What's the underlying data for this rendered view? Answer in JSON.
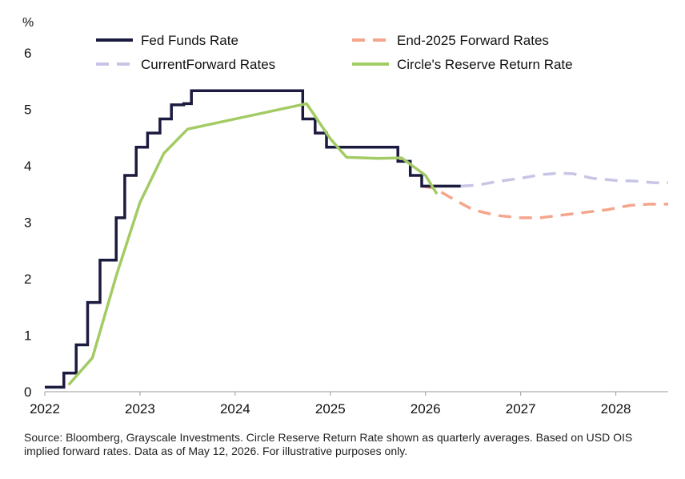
{
  "chart_data": {
    "type": "line",
    "ylabel": "%",
    "ylim": [
      0,
      6
    ],
    "xlim": [
      2022.0,
      2028.55
    ],
    "y_ticks": [
      "0",
      "1",
      "2",
      "3",
      "4",
      "5",
      "6"
    ],
    "x_ticks": [
      "2022",
      "2023",
      "2024",
      "2025",
      "2026",
      "2027",
      "2028"
    ],
    "grid": false,
    "legend_position": "top",
    "series": [
      {
        "name": "Fed Funds Rate",
        "style": "step",
        "color": "#1b1a3f",
        "points": [
          [
            2022.0,
            0.08
          ],
          [
            2022.2,
            0.08
          ],
          [
            2022.2,
            0.33
          ],
          [
            2022.33,
            0.33
          ],
          [
            2022.33,
            0.83
          ],
          [
            2022.45,
            0.83
          ],
          [
            2022.45,
            1.58
          ],
          [
            2022.58,
            1.58
          ],
          [
            2022.58,
            2.33
          ],
          [
            2022.75,
            2.33
          ],
          [
            2022.75,
            3.08
          ],
          [
            2022.84,
            3.08
          ],
          [
            2022.84,
            3.83
          ],
          [
            2022.96,
            3.83
          ],
          [
            2022.96,
            4.33
          ],
          [
            2023.08,
            4.33
          ],
          [
            2023.08,
            4.58
          ],
          [
            2023.21,
            4.58
          ],
          [
            2023.21,
            4.83
          ],
          [
            2023.33,
            4.83
          ],
          [
            2023.33,
            5.08
          ],
          [
            2023.46,
            5.08
          ],
          [
            2023.46,
            5.1
          ],
          [
            2023.54,
            5.1
          ],
          [
            2023.54,
            5.33
          ],
          [
            2024.71,
            5.33
          ],
          [
            2024.71,
            4.83
          ],
          [
            2024.84,
            4.83
          ],
          [
            2024.84,
            4.58
          ],
          [
            2024.96,
            4.58
          ],
          [
            2024.96,
            4.33
          ],
          [
            2025.71,
            4.33
          ],
          [
            2025.71,
            4.08
          ],
          [
            2025.84,
            4.08
          ],
          [
            2025.84,
            3.83
          ],
          [
            2025.96,
            3.83
          ],
          [
            2025.96,
            3.64
          ],
          [
            2026.37,
            3.64
          ]
        ]
      },
      {
        "name": "End-2025 Forward Rates",
        "style": "dashed",
        "color": "#f5a58c",
        "points": [
          [
            2025.96,
            3.64
          ],
          [
            2026.1,
            3.6
          ],
          [
            2026.25,
            3.45
          ],
          [
            2026.5,
            3.22
          ],
          [
            2026.75,
            3.12
          ],
          [
            2027.0,
            3.08
          ],
          [
            2027.2,
            3.08
          ],
          [
            2027.45,
            3.13
          ],
          [
            2027.7,
            3.18
          ],
          [
            2027.9,
            3.22
          ],
          [
            2028.15,
            3.3
          ],
          [
            2028.35,
            3.32
          ],
          [
            2028.55,
            3.32
          ]
        ]
      },
      {
        "name": "CurrentForward Rates",
        "style": "dashed",
        "color": "#c7c5e6",
        "points": [
          [
            2026.37,
            3.64
          ],
          [
            2026.55,
            3.66
          ],
          [
            2026.75,
            3.72
          ],
          [
            2027.0,
            3.78
          ],
          [
            2027.2,
            3.84
          ],
          [
            2027.4,
            3.87
          ],
          [
            2027.55,
            3.86
          ],
          [
            2027.75,
            3.78
          ],
          [
            2028.0,
            3.74
          ],
          [
            2028.2,
            3.73
          ],
          [
            2028.4,
            3.7
          ],
          [
            2028.55,
            3.7
          ]
        ]
      },
      {
        "name": "Circle's Reserve Return Rate",
        "style": "solid",
        "color": "#a3cb64",
        "points": [
          [
            2022.25,
            0.12
          ],
          [
            2022.5,
            0.6
          ],
          [
            2022.75,
            2.05
          ],
          [
            2023.0,
            3.35
          ],
          [
            2023.25,
            4.22
          ],
          [
            2023.5,
            4.65
          ],
          [
            2024.75,
            5.1
          ],
          [
            2025.0,
            4.48
          ],
          [
            2025.17,
            4.15
          ],
          [
            2025.5,
            4.13
          ],
          [
            2025.75,
            4.14
          ],
          [
            2026.0,
            3.83
          ],
          [
            2026.12,
            3.5
          ]
        ]
      }
    ]
  },
  "source_note": "Source: Bloomberg, Grayscale Investments. Circle Reserve Return Rate shown as quarterly averages. Based on USD OIS implied forward rates. Data as of May 12, 2026. For illustrative purposes only."
}
